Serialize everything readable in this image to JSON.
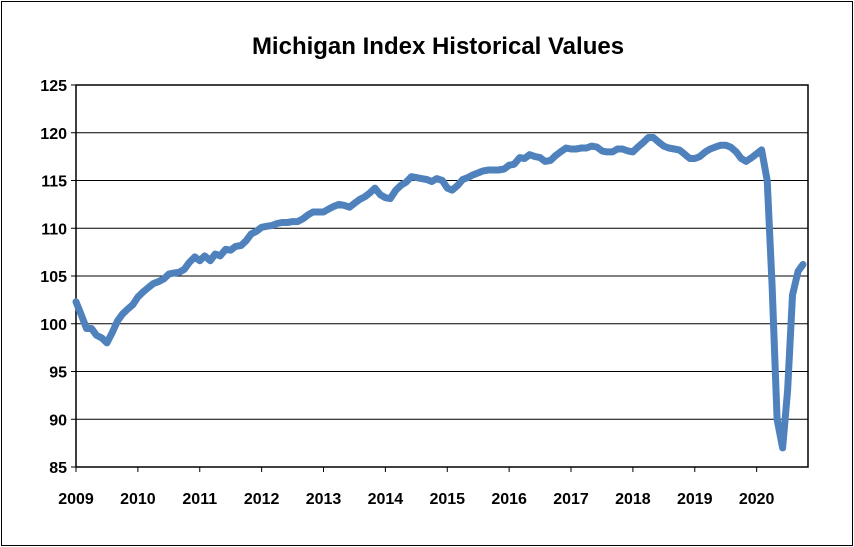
{
  "chart_data": {
    "type": "line",
    "title": "Michigan Index Historical Values",
    "xlabel": "",
    "ylabel": "",
    "xlim": [
      2009,
      2020.83
    ],
    "ylim": [
      85,
      125
    ],
    "y_ticks": [
      85,
      90,
      95,
      100,
      105,
      110,
      115,
      120,
      125
    ],
    "x_ticks": [
      2009,
      2010,
      2011,
      2012,
      2013,
      2014,
      2015,
      2016,
      2017,
      2018,
      2019,
      2020
    ],
    "y_tick_labels": [
      "85",
      "90",
      "95",
      "100",
      "105",
      "110",
      "115",
      "120",
      "125"
    ],
    "x_tick_labels": [
      "2009",
      "2010",
      "2011",
      "2012",
      "2013",
      "2014",
      "2015",
      "2016",
      "2017",
      "2018",
      "2019",
      "2020"
    ],
    "grid": "horizontal",
    "line_color": "#4f81bd",
    "series": [
      {
        "x": [
          2009.0,
          2009.08,
          2009.17,
          2009.25,
          2009.33,
          2009.42,
          2009.5,
          2009.58,
          2009.67,
          2009.75,
          2009.83,
          2009.92,
          2010.0,
          2010.08,
          2010.17,
          2010.25,
          2010.33,
          2010.42,
          2010.5,
          2010.58,
          2010.67,
          2010.75,
          2010.83,
          2010.92,
          2011.0,
          2011.08,
          2011.17,
          2011.25,
          2011.33,
          2011.42,
          2011.5,
          2011.58,
          2011.67,
          2011.75,
          2011.83,
          2011.92,
          2012.0,
          2012.08,
          2012.17,
          2012.25,
          2012.33,
          2012.42,
          2012.5,
          2012.58,
          2012.67,
          2012.75,
          2012.83,
          2012.92,
          2013.0,
          2013.08,
          2013.17,
          2013.25,
          2013.33,
          2013.42,
          2013.5,
          2013.58,
          2013.67,
          2013.75,
          2013.83,
          2013.92,
          2014.0,
          2014.08,
          2014.17,
          2014.25,
          2014.33,
          2014.42,
          2014.5,
          2014.58,
          2014.67,
          2014.75,
          2014.83,
          2014.92,
          2015.0,
          2015.08,
          2015.17,
          2015.25,
          2015.33,
          2015.42,
          2015.5,
          2015.58,
          2015.67,
          2015.75,
          2015.83,
          2015.92,
          2016.0,
          2016.08,
          2016.17,
          2016.25,
          2016.33,
          2016.42,
          2016.5,
          2016.58,
          2016.67,
          2016.75,
          2016.83,
          2016.92,
          2017.0,
          2017.08,
          2017.17,
          2017.25,
          2017.33,
          2017.42,
          2017.5,
          2017.58,
          2017.67,
          2017.75,
          2017.83,
          2017.92,
          2018.0,
          2018.08,
          2018.17,
          2018.25,
          2018.33,
          2018.42,
          2018.5,
          2018.58,
          2018.67,
          2018.75,
          2018.83,
          2018.92,
          2019.0,
          2019.08,
          2019.17,
          2019.25,
          2019.33,
          2019.42,
          2019.5,
          2019.58,
          2019.67,
          2019.75,
          2019.83,
          2019.92,
          2020.0,
          2020.08,
          2020.17,
          2020.25,
          2020.33,
          2020.42,
          2020.5,
          2020.58,
          2020.67,
          2020.75
        ],
        "values": [
          102.3,
          101.0,
          99.5,
          99.5,
          98.8,
          98.5,
          98.0,
          99.0,
          100.3,
          101.0,
          101.5,
          102.0,
          102.8,
          103.3,
          103.8,
          104.2,
          104.4,
          104.7,
          105.2,
          105.3,
          105.4,
          105.7,
          106.4,
          107.0,
          106.6,
          107.1,
          106.6,
          107.3,
          107.1,
          107.8,
          107.7,
          108.1,
          108.2,
          108.7,
          109.4,
          109.7,
          110.1,
          110.2,
          110.3,
          110.5,
          110.6,
          110.6,
          110.7,
          110.7,
          111.0,
          111.4,
          111.7,
          111.7,
          111.7,
          112.0,
          112.3,
          112.5,
          112.4,
          112.2,
          112.6,
          113.0,
          113.3,
          113.7,
          114.2,
          113.5,
          113.2,
          113.1,
          114.0,
          114.5,
          114.8,
          115.4,
          115.3,
          115.2,
          115.1,
          114.9,
          115.2,
          115.0,
          114.2,
          114.0,
          114.5,
          115.1,
          115.3,
          115.6,
          115.8,
          116.0,
          116.1,
          116.1,
          116.1,
          116.2,
          116.6,
          116.7,
          117.4,
          117.3,
          117.7,
          117.5,
          117.4,
          117.0,
          117.1,
          117.6,
          118.0,
          118.4,
          118.3,
          118.3,
          118.4,
          118.4,
          118.6,
          118.5,
          118.1,
          118.0,
          118.0,
          118.3,
          118.3,
          118.1,
          118.0,
          118.5,
          119.0,
          119.5,
          119.5,
          119.0,
          118.6,
          118.4,
          118.3,
          118.2,
          117.8,
          117.3,
          117.3,
          117.5,
          118.0,
          118.3,
          118.5,
          118.7,
          118.7,
          118.5,
          118.0,
          117.3,
          117.0,
          117.4,
          117.8,
          118.2,
          115.0,
          104.0,
          90.0,
          87.0,
          93.0,
          103.0,
          105.5,
          106.2
        ]
      }
    ]
  }
}
